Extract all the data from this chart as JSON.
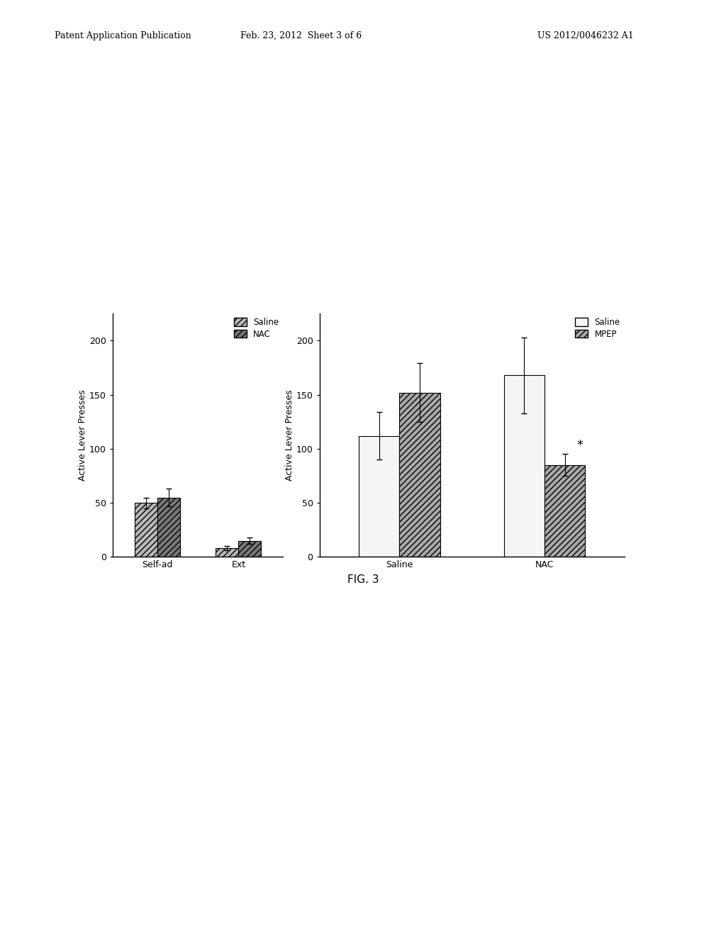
{
  "left_chart": {
    "groups": [
      "Self-ad",
      "Ext"
    ],
    "bar1_label": "Saline",
    "bar2_label": "NAC",
    "bar1_color": "#b8b8b8",
    "bar2_color": "#787878",
    "bar1_values": [
      50,
      8
    ],
    "bar2_values": [
      55,
      15
    ],
    "bar1_errors": [
      5,
      2
    ],
    "bar2_errors": [
      8,
      3
    ],
    "ylabel": "Active Lever Presses",
    "ylim": [
      0,
      225
    ],
    "yticks": [
      0,
      50,
      100,
      150,
      200
    ]
  },
  "right_chart": {
    "groups": [
      "Saline",
      "NAC"
    ],
    "bar1_label": "Saline",
    "bar2_label": "MPEP",
    "bar1_color": "#f5f5f5",
    "bar2_color": "#a8a8a8",
    "bar1_values": [
      112,
      168
    ],
    "bar2_values": [
      152,
      85
    ],
    "bar1_errors": [
      22,
      35
    ],
    "bar2_errors": [
      27,
      10
    ],
    "ylabel": "Active Lever Presses",
    "ylim": [
      0,
      225
    ],
    "yticks": [
      0,
      50,
      100,
      150,
      200
    ]
  },
  "fig_label": "FIG. 3",
  "header_left": "Patent Application Publication",
  "header_mid": "Feb. 23, 2012  Sheet 3 of 6",
  "header_right": "US 2012/0046232 A1",
  "background_color": "#ffffff",
  "text_color": "#000000"
}
